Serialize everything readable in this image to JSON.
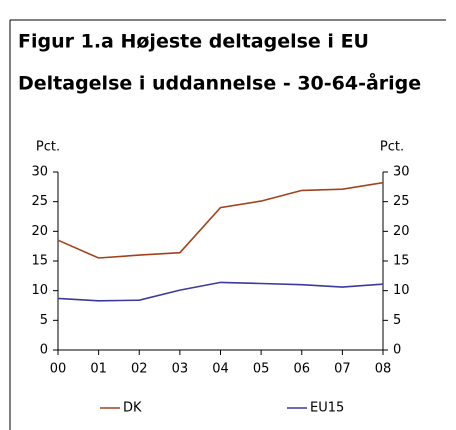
{
  "chart_data": {
    "type": "line",
    "title": "Figur 1.a Højeste deltagelse i EU",
    "subtitle": "Deltagelse i uddannelse - 30-64-årige",
    "ylabel": "Pct.",
    "y2label": "Pct.",
    "categories": [
      "00",
      "01",
      "02",
      "03",
      "04",
      "05",
      "06",
      "07",
      "08"
    ],
    "series": [
      {
        "name": "DK",
        "color": "#a3421c",
        "values": [
          18.5,
          15.5,
          16,
          16.4,
          24,
          25.1,
          26.9,
          27.1,
          28.2
        ]
      },
      {
        "name": "EU15",
        "color": "#3b3b9e",
        "values": [
          8.7,
          8.3,
          8.4,
          10.1,
          11.4,
          11.2,
          11.0,
          10.6,
          11.1
        ]
      }
    ],
    "ylim": [
      0,
      30
    ],
    "yticks": [
      0,
      5,
      10,
      15,
      20,
      25,
      30
    ],
    "y2lim": [
      0,
      30
    ],
    "y2ticks": [
      0,
      5,
      10,
      15,
      20,
      25,
      30
    ],
    "grid": false,
    "legend": "bottom"
  }
}
